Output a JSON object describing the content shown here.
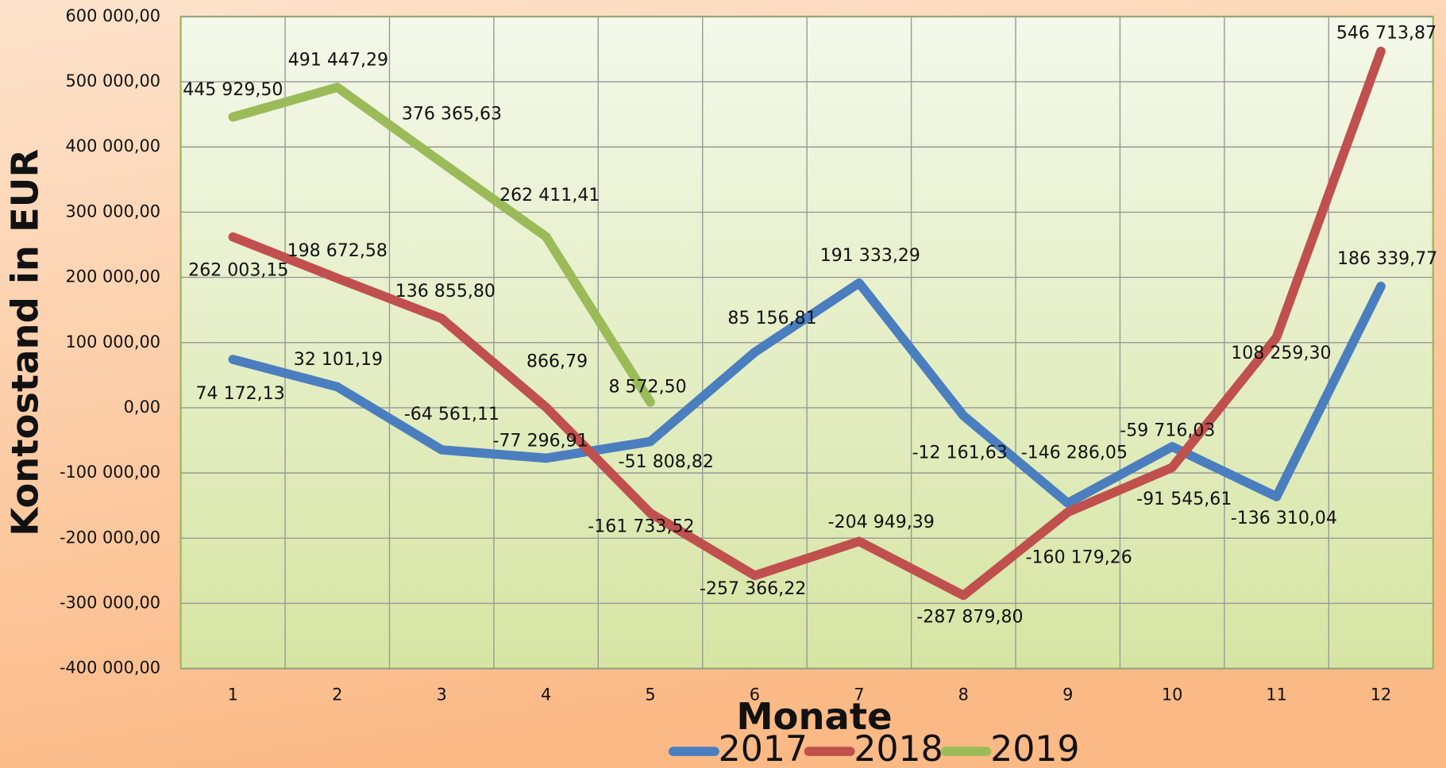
{
  "chart_data": {
    "type": "line",
    "xlabel": "Monate",
    "ylabel": "Kontostand in EUR",
    "categories": [
      "1",
      "2",
      "3",
      "4",
      "5",
      "6",
      "7",
      "8",
      "9",
      "10",
      "11",
      "12"
    ],
    "series": [
      {
        "name": "2017",
        "color": "#4a7ebf",
        "values": [
          74172.13,
          32101.19,
          -64561.11,
          -77296.91,
          -51808.82,
          85156.81,
          191333.29,
          -12161.63,
          -146286.05,
          -59716.03,
          -136310.04,
          186339.77
        ],
        "value_labels": [
          "74 172,13",
          "32 101,19",
          "-64 561,11",
          "-77 296,91",
          "-51 808,82",
          "85 156,81",
          "191 333,29",
          "-12 161,63",
          "-146 286,05",
          "-59 716,03",
          "-136 310,04",
          "186 339,77"
        ]
      },
      {
        "name": "2018",
        "color": "#c0504d",
        "values": [
          262003.15,
          198672.58,
          136855.8,
          866.79,
          -161733.52,
          -257366.22,
          -204949.39,
          -287879.8,
          -160179.26,
          -91545.61,
          108259.3,
          546713.87
        ],
        "value_labels": [
          "262 003,15",
          "198 672,58",
          "136 855,80",
          "866,79",
          "-161 733,52",
          "-257 366,22",
          "-204 949,39",
          "-287 879,80",
          "-160 179,26",
          "-91 545,61",
          "108 259,30",
          "546 713,87"
        ]
      },
      {
        "name": "2019",
        "color": "#9bbb59",
        "values": [
          445929.5,
          491447.29,
          376365.63,
          262411.41,
          8572.5,
          null,
          null,
          null,
          null,
          null,
          null,
          null
        ],
        "value_labels": [
          "445 929,50",
          "491 447,29",
          "376 365,63",
          "262 411,41",
          "8 572,50",
          null,
          null,
          null,
          null,
          null,
          null,
          null
        ]
      }
    ],
    "ylim": [
      -400000,
      600000
    ],
    "yticks": [
      {
        "value": -400000,
        "label": "-400 000,00"
      },
      {
        "value": -300000,
        "label": "-300 000,00"
      },
      {
        "value": -200000,
        "label": "-200 000,00"
      },
      {
        "value": -100000,
        "label": "-100 000,00"
      },
      {
        "value": 0,
        "label": "0,00"
      },
      {
        "value": 100000,
        "label": "100 000,00"
      },
      {
        "value": 200000,
        "label": "200 000,00"
      },
      {
        "value": 300000,
        "label": "300 000,00"
      },
      {
        "value": 400000,
        "label": "400 000,00"
      },
      {
        "value": 500000,
        "label": "500 000,00"
      },
      {
        "value": 600000,
        "label": "600 000,00"
      }
    ],
    "grid": true,
    "legend": "bottom"
  }
}
